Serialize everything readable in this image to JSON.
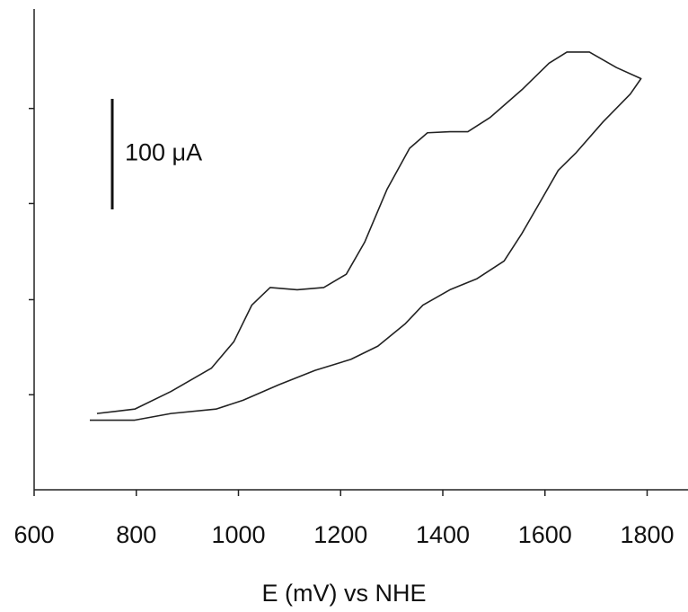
{
  "chart_data": {
    "type": "line",
    "x_label": "E (mV) vs NHE",
    "x": [
      723,
      797,
      868,
      947,
      991,
      1026,
      1062,
      1115,
      1167,
      1211,
      1247,
      1291,
      1335,
      1370,
      1414,
      1449,
      1493,
      1555,
      1608,
      1643,
      1687,
      1740,
      1788,
      1767,
      1714,
      1661,
      1626,
      1590,
      1555,
      1520,
      1467,
      1414,
      1361,
      1326,
      1273,
      1220,
      1150,
      1079,
      1009,
      956,
      868,
      797,
      709
    ],
    "series": [
      {
        "color": "#222222",
        "values": [
          69,
          73,
          89,
          110,
          134,
          167,
          183,
          181,
          183,
          195,
          224,
          272,
          309,
          323,
          324,
          324,
          337,
          362,
          386,
          396,
          396,
          382,
          372,
          358,
          333,
          305,
          289,
          260,
          232,
          207,
          191,
          181,
          167,
          150,
          130,
          118,
          108,
          95,
          81,
          73,
          69,
          63,
          63
        ]
      }
    ],
    "xlim": [
      600,
      1880
    ],
    "xticks": [
      600,
      800,
      1000,
      1200,
      1400,
      1600,
      1800
    ],
    "ylim": [
      0,
      435
    ],
    "yticks": [
      86,
      172,
      259,
      345
    ],
    "scale_bar": {
      "label": "100 μA",
      "value": 100
    }
  }
}
